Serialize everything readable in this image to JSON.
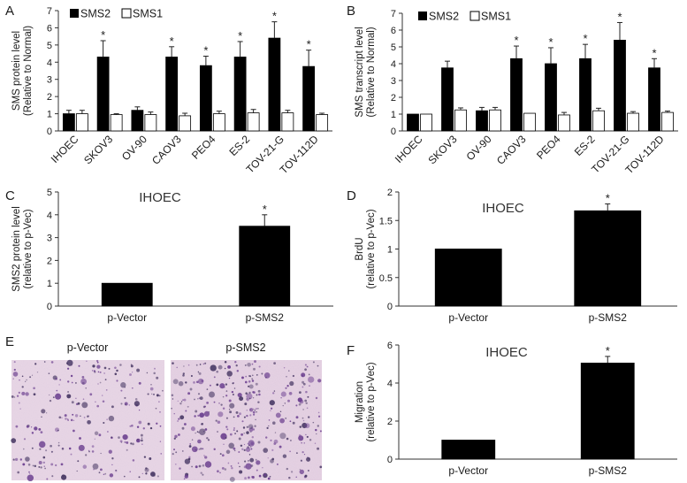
{
  "panels": [
    {
      "id": "A",
      "letter": "A",
      "legend": [
        {
          "name": "SMS2",
          "color": "#000000"
        },
        {
          "name": "SMS1",
          "color": "#ffffff"
        }
      ]
    },
    {
      "id": "B",
      "letter": "B"
    },
    {
      "id": "C",
      "letter": "C"
    },
    {
      "id": "D",
      "letter": "D"
    },
    {
      "id": "E",
      "letter": "E",
      "images": [
        {
          "label": "p-Vector"
        },
        {
          "label": "p-SMS2"
        }
      ]
    },
    {
      "id": "F",
      "letter": "F"
    }
  ],
  "chart_data": [
    {
      "panel": "A",
      "type": "bar",
      "title": "",
      "ylabel": "SMS protein level (Relative to Normal)",
      "ylabel_lines": [
        "SMS protein level",
        "(Relative to Normal)"
      ],
      "ylim": [
        0,
        7
      ],
      "yticks": [
        0,
        1,
        2,
        3,
        4,
        5,
        6,
        7
      ],
      "categories": [
        "IHOEC",
        "SKOV3",
        "OV-90",
        "CAOV3",
        "PEO4",
        "ES-2",
        "TOV-21-G",
        "TOV-112D"
      ],
      "series": [
        {
          "name": "SMS2",
          "color": "#000000",
          "values": [
            1.0,
            4.3,
            1.2,
            4.3,
            3.8,
            4.3,
            5.4,
            3.75
          ],
          "errors": [
            0.2,
            0.95,
            0.2,
            0.6,
            0.55,
            0.9,
            0.95,
            0.95
          ]
        },
        {
          "name": "SMS1",
          "color": "#ffffff",
          "values": [
            1.0,
            0.95,
            0.95,
            0.88,
            1.0,
            1.05,
            1.05,
            0.95
          ],
          "errors": [
            0.2,
            0.05,
            0.15,
            0.15,
            0.15,
            0.2,
            0.15,
            0.08
          ]
        }
      ],
      "significance": [
        "",
        "*",
        "",
        "*",
        "*",
        "*",
        "*",
        "*"
      ],
      "legend": "top-left"
    },
    {
      "panel": "B",
      "type": "bar",
      "title": "",
      "ylabel": "SMS transcript level (Relative to Normal)",
      "ylabel_lines": [
        "SMS transcript level",
        "(Relative to Normal)"
      ],
      "ylim": [
        0,
        7
      ],
      "yticks": [
        0,
        1,
        2,
        3,
        4,
        5,
        6,
        7
      ],
      "categories": [
        "IHOEC",
        "SKOV3",
        "OV-90",
        "CAOV3",
        "PEO4",
        "ES-2",
        "TOV-21-G",
        "TOV-112D"
      ],
      "series": [
        {
          "name": "SMS2",
          "color": "#000000",
          "values": [
            1.0,
            3.75,
            1.2,
            4.3,
            4.0,
            4.3,
            5.4,
            3.75
          ],
          "errors": [
            0.0,
            0.4,
            0.2,
            0.75,
            0.95,
            0.85,
            1.05,
            0.55
          ]
        },
        {
          "name": "SMS1",
          "color": "#ffffff",
          "values": [
            1.0,
            1.25,
            1.25,
            1.05,
            0.95,
            1.2,
            1.05,
            1.1
          ],
          "errors": [
            0.0,
            0.12,
            0.15,
            0.0,
            0.15,
            0.15,
            0.1,
            0.08
          ]
        }
      ],
      "significance": [
        "",
        "",
        "",
        "*",
        "*",
        "*",
        "*",
        "*"
      ],
      "legend": "top-left"
    },
    {
      "panel": "C",
      "type": "bar",
      "title": "IHOEC",
      "ylabel": "SMS2 protein level (relative to p-Vec)",
      "ylabel_lines": [
        "SMS2 protein level",
        "(relative to p-Vec)"
      ],
      "ylim": [
        0,
        5
      ],
      "yticks": [
        0,
        1,
        2,
        3,
        4,
        5
      ],
      "categories": [
        "p-Vector",
        "p-SMS2"
      ],
      "values": [
        1.0,
        3.5
      ],
      "errors": [
        0.0,
        0.5
      ],
      "significance": [
        "",
        "*"
      ]
    },
    {
      "panel": "D",
      "type": "bar",
      "title": "IHOEC",
      "ylabel": "BrdU (relative to p-Vec)",
      "ylabel_lines": [
        "BrdU",
        "(relative to p-Vec)"
      ],
      "ylim": [
        0,
        2
      ],
      "yticks": [
        0,
        0.5,
        1,
        1.5,
        2
      ],
      "ytick_labels": [
        "0",
        "0.5",
        "1",
        "1.5",
        "2"
      ],
      "categories": [
        "p-Vector",
        "p-SMS2"
      ],
      "values": [
        1.0,
        1.67
      ],
      "errors": [
        0.0,
        0.12
      ],
      "significance": [
        "",
        "*"
      ]
    },
    {
      "panel": "F",
      "type": "bar",
      "title": "IHOEC",
      "ylabel": "Migration (relative to p-Vec)",
      "ylabel_lines": [
        "Migration",
        "(relative to p-Vec)"
      ],
      "ylim": [
        0,
        6
      ],
      "yticks": [
        0,
        2,
        4,
        6
      ],
      "categories": [
        "p-Vector",
        "p-SMS2"
      ],
      "values": [
        1.0,
        5.05
      ],
      "errors": [
        0.0,
        0.35
      ],
      "significance": [
        "",
        "*"
      ]
    }
  ]
}
